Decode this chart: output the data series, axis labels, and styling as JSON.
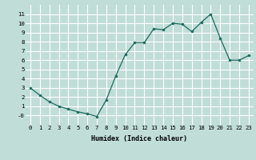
{
  "x": [
    0,
    1,
    2,
    3,
    4,
    5,
    6,
    7,
    8,
    9,
    10,
    11,
    12,
    13,
    14,
    15,
    16,
    17,
    18,
    19,
    20,
    21,
    22,
    23
  ],
  "y": [
    3.0,
    2.2,
    1.5,
    1.0,
    0.7,
    0.4,
    0.2,
    -0.1,
    1.7,
    4.3,
    6.6,
    7.9,
    7.9,
    9.4,
    9.3,
    10.0,
    9.9,
    9.1,
    10.1,
    11.0,
    8.4,
    6.0,
    6.0,
    6.5
  ],
  "xlabel": "Humidex (Indice chaleur)",
  "ylim": [
    -1,
    12
  ],
  "xlim": [
    -0.5,
    23.5
  ],
  "yticks": [
    0,
    1,
    2,
    3,
    4,
    5,
    6,
    7,
    8,
    9,
    10,
    11
  ],
  "ytick_labels": [
    "-0",
    "1",
    "2",
    "3",
    "4",
    "5",
    "6",
    "7",
    "8",
    "9",
    "10",
    "11"
  ],
  "xticks": [
    0,
    1,
    2,
    3,
    4,
    5,
    6,
    7,
    8,
    9,
    10,
    11,
    12,
    13,
    14,
    15,
    16,
    17,
    18,
    19,
    20,
    21,
    22,
    23
  ],
  "line_color": "#1a6b5e",
  "marker_color": "#1a6b5e",
  "bg_color": "#c0ddd8",
  "grid_color": "#ffffff",
  "xlabel_fontsize": 6.0,
  "tick_fontsize": 5.2
}
